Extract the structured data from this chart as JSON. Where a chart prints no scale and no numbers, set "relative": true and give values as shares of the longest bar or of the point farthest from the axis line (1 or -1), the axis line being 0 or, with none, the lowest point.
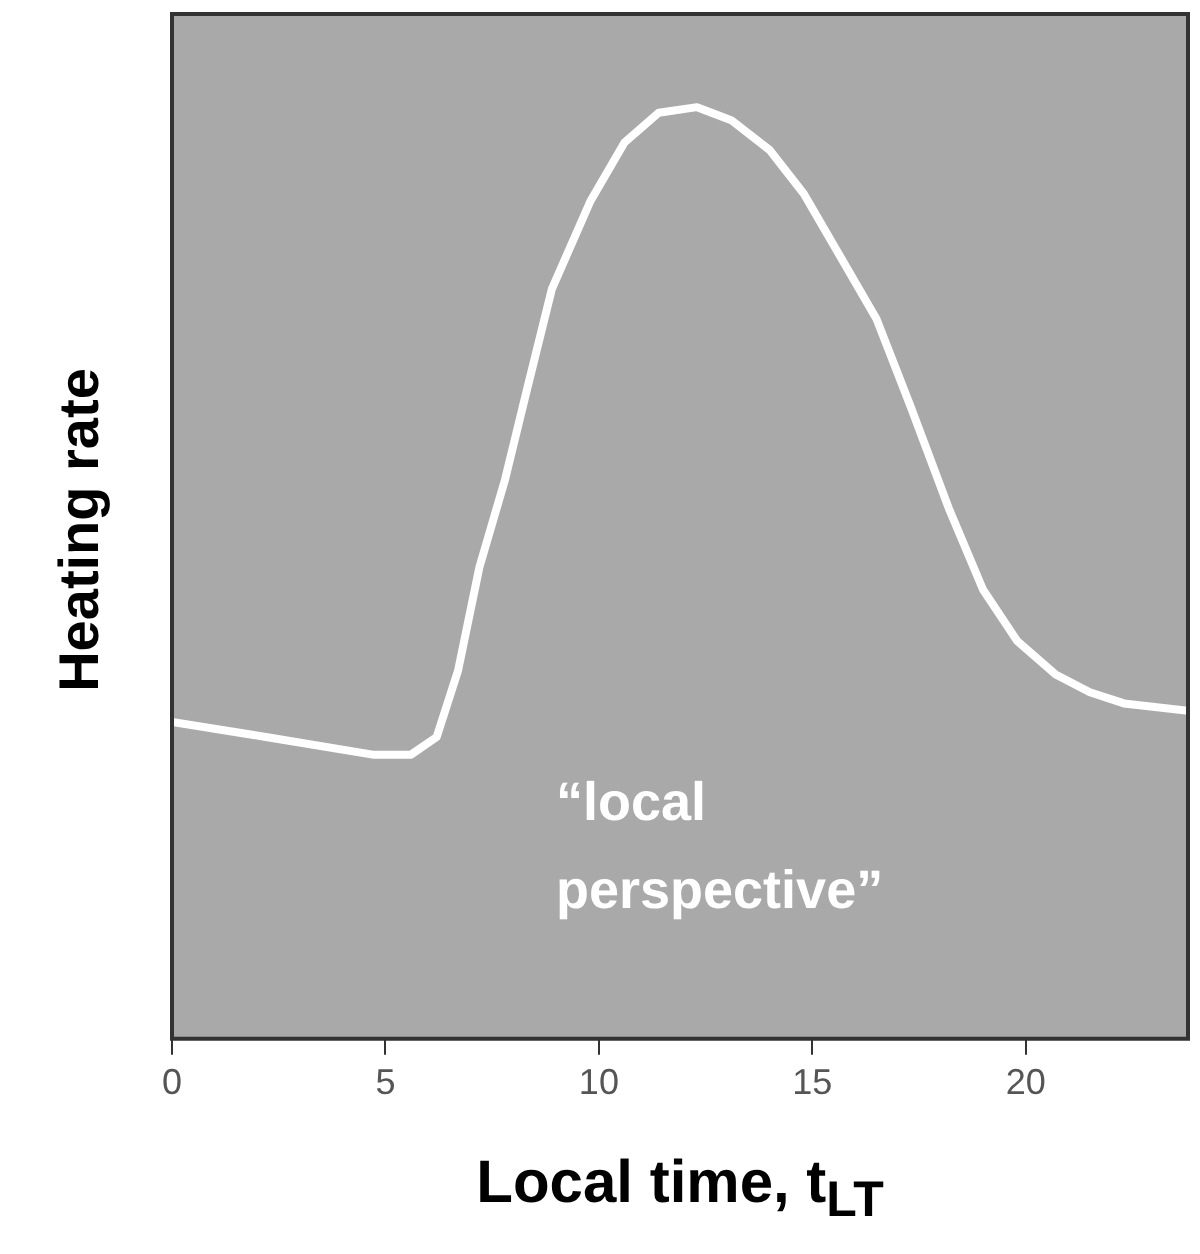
{
  "chart_data": {
    "type": "line",
    "relative": true,
    "xlabel": "Local time, t$_{LT}$",
    "ylabel": "Heating rate",
    "xlim": [
      0,
      23.8
    ],
    "xticks": [
      0,
      5,
      10,
      15,
      20
    ],
    "annotations": [
      "“local perspective”"
    ],
    "series": [
      {
        "color": "#ffffff",
        "x": [
          0,
          2.2,
          4.7,
          5.6,
          6.2,
          6.7,
          7.2,
          7.8,
          8.3,
          8.9,
          9.8,
          10.6,
          11.4,
          12.3,
          13.1,
          14,
          14.8,
          15.6,
          16.5,
          17.3,
          18.2,
          19,
          19.8,
          20.7,
          21.5,
          22.3,
          23.8
        ],
        "values": [
          0.34,
          0.324,
          0.305,
          0.305,
          0.324,
          0.395,
          0.506,
          0.6,
          0.694,
          0.805,
          0.899,
          0.962,
          0.994,
          1,
          0.986,
          0.954,
          0.907,
          0.844,
          0.773,
          0.679,
          0.569,
          0.482,
          0.427,
          0.391,
          0.372,
          0.36,
          0.352
        ]
      }
    ]
  }
}
